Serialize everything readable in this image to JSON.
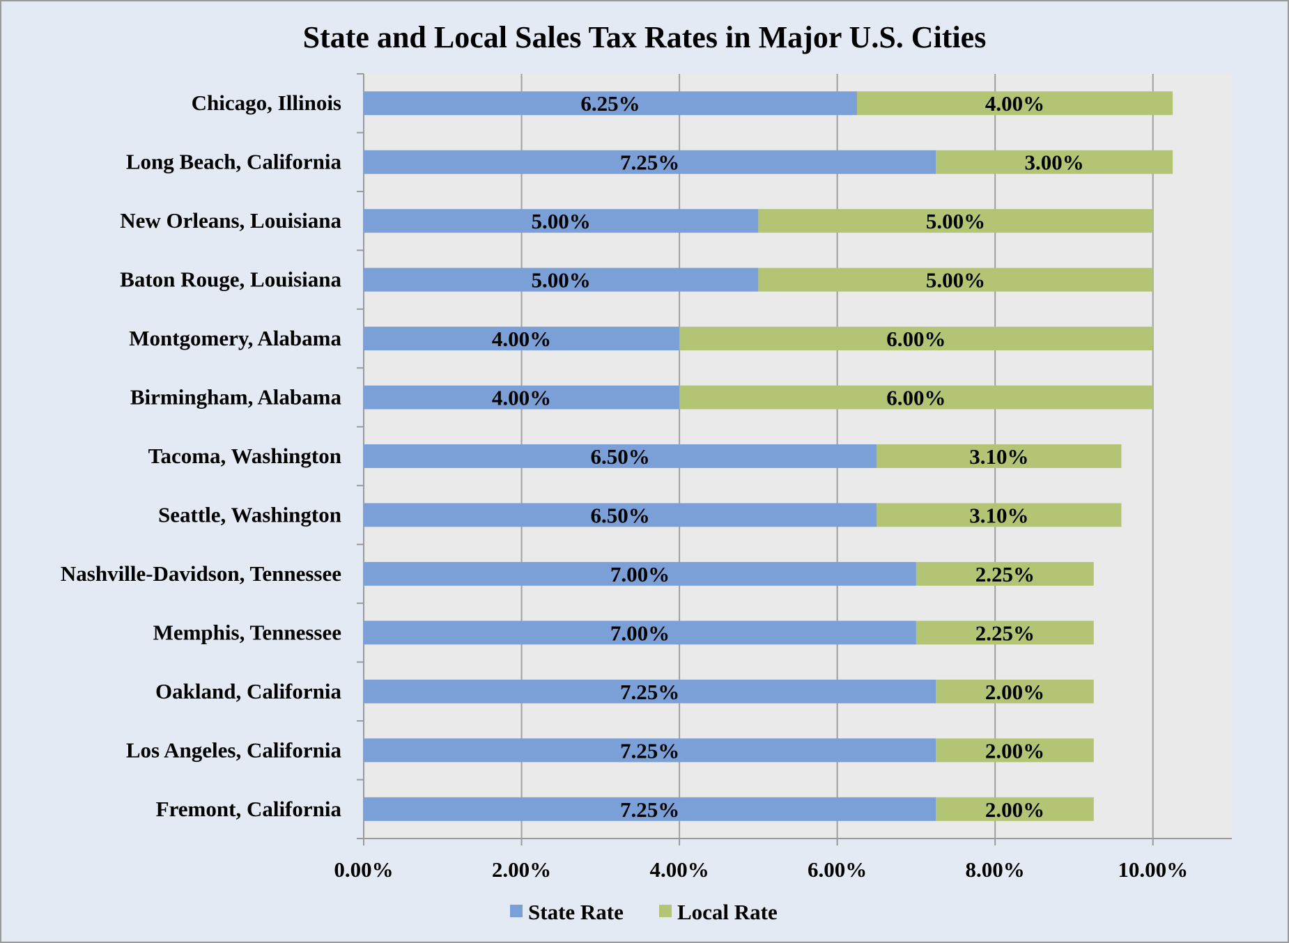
{
  "chart_data": {
    "type": "bar",
    "orientation": "horizontal",
    "stacked": true,
    "title": "State and Local Sales Tax Rates in Major U.S. Cities",
    "xlabel": "",
    "ylabel": "",
    "xlim": [
      0,
      11
    ],
    "x_ticks": [
      0,
      2,
      4,
      6,
      8,
      10
    ],
    "x_tick_labels": [
      "0.00%",
      "2.00%",
      "4.00%",
      "6.00%",
      "8.00%",
      "10.00%"
    ],
    "grid": "vertical",
    "legend_position": "bottom",
    "categories": [
      "Chicago, Illinois",
      "Long Beach, California",
      "New Orleans, Louisiana",
      "Baton Rouge, Louisiana",
      "Montgomery, Alabama",
      "Birmingham, Alabama",
      "Tacoma, Washington",
      "Seattle, Washington",
      "Nashville-Davidson, Tennessee",
      "Memphis, Tennessee",
      "Oakland, California",
      "Los Angeles, California",
      "Fremont, California"
    ],
    "series": [
      {
        "name": "State Rate",
        "color": "#7aa0d7",
        "values": [
          6.25,
          7.25,
          5.0,
          5.0,
          4.0,
          4.0,
          6.5,
          6.5,
          7.0,
          7.0,
          7.25,
          7.25,
          7.25
        ],
        "labels": [
          "6.25%",
          "7.25%",
          "5.00%",
          "5.00%",
          "4.00%",
          "4.00%",
          "6.50%",
          "6.50%",
          "7.00%",
          "7.00%",
          "7.25%",
          "7.25%",
          "7.25%"
        ]
      },
      {
        "name": "Local Rate",
        "color": "#b3c474",
        "values": [
          4.0,
          3.0,
          5.0,
          5.0,
          6.0,
          6.0,
          3.1,
          3.1,
          2.25,
          2.25,
          2.0,
          2.0,
          2.0
        ],
        "labels": [
          "4.00%",
          "3.00%",
          "5.00%",
          "5.00%",
          "6.00%",
          "6.00%",
          "3.10%",
          "3.10%",
          "2.25%",
          "2.25%",
          "2.00%",
          "2.00%",
          "2.00%"
        ]
      }
    ]
  },
  "colors": {
    "chart_background": "#e4eaf4",
    "plot_background": "#eaeaea",
    "gridline": "#a0a0a0"
  }
}
